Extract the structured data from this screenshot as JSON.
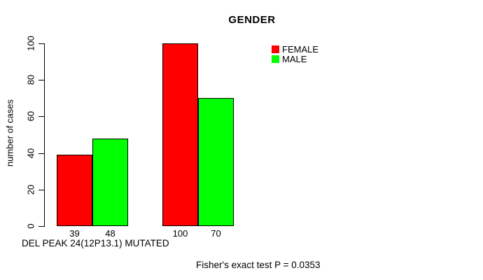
{
  "chart_data": {
    "type": "bar",
    "title": "GENDER",
    "xlabel": "DEL PEAK 24(12P13.1) MUTATED",
    "ylabel": "number of cases",
    "ylim": [
      0,
      100
    ],
    "yticks": [
      0,
      20,
      40,
      60,
      80,
      100
    ],
    "categories": [
      "",
      ""
    ],
    "series": [
      {
        "name": "FEMALE",
        "color": "#ff0000",
        "values": [
          39,
          100
        ]
      },
      {
        "name": "MALE",
        "color": "#00ff00",
        "values": [
          48,
          70
        ]
      }
    ],
    "bar_value_labels": [
      [
        39,
        48
      ],
      [
        100,
        70
      ]
    ],
    "legend_position": "top-right",
    "grid": false,
    "annotation": "Fisher's exact test P = 0.0353"
  }
}
